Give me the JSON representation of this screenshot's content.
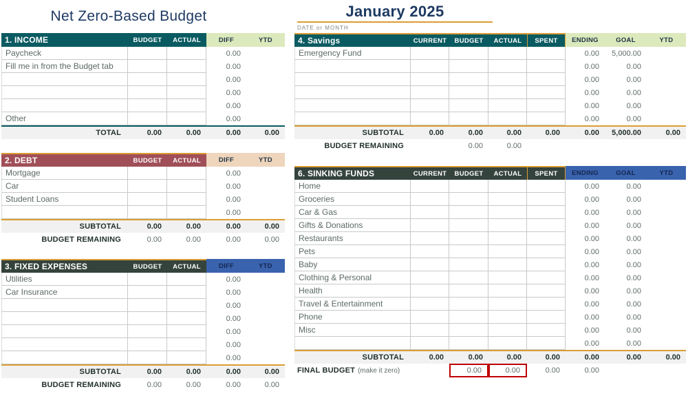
{
  "page": {
    "left_title": "Net Zero-Based Budget",
    "right_title": "January 2025",
    "date_label": "DATE or MONTH"
  },
  "colors": {
    "teal": "#0a5b61",
    "light_green": "#dbe9bc",
    "maroon": "#a04f58",
    "tan": "#eed5bc",
    "charcoal": "#35433d",
    "blue": "#3a63ae",
    "orange": "#dc9d33",
    "navy": "#1e3a63",
    "red": "#c00000",
    "subtotal_bg": "#f1f1f1"
  },
  "sections": {
    "income": {
      "title": "1. INCOME",
      "cols": [
        "BUDGET",
        "ACTUAL",
        "DIFF",
        "YTD"
      ],
      "rows": [
        {
          "label": "Paycheck",
          "diff": "0.00"
        },
        {
          "label": "Fill me in from the Budget tab",
          "diff": "0.00"
        },
        {
          "label": "",
          "diff": "0.00"
        },
        {
          "label": "",
          "diff": "0.00"
        },
        {
          "label": "",
          "diff": "0.00"
        },
        {
          "label": "Other",
          "diff": "0.00"
        }
      ],
      "total_label": "TOTAL",
      "total_values": [
        "0.00",
        "0.00",
        "0.00",
        "0.00"
      ]
    },
    "debt": {
      "title": "2. DEBT",
      "cols": [
        "BUDGET",
        "ACTUAL",
        "DIFF",
        "YTD"
      ],
      "rows": [
        {
          "label": "Mortgage",
          "diff": "0.00"
        },
        {
          "label": "Car",
          "diff": "0.00"
        },
        {
          "label": "Student Loans",
          "diff": "0.00"
        },
        {
          "label": "",
          "diff": "0.00"
        }
      ],
      "subtotal_label": "SUBTOTAL",
      "subtotal_values": [
        "0.00",
        "0.00",
        "0.00",
        "0.00"
      ],
      "remaining_label": "BUDGET REMAINING",
      "remaining_values": [
        "0.00",
        "0.00",
        "0.00",
        "0.00"
      ]
    },
    "fixed": {
      "title": "3. FIXED EXPENSES",
      "cols": [
        "BUDGET",
        "ACTUAL",
        "DIFF",
        "YTD"
      ],
      "rows": [
        {
          "label": "Utilities",
          "diff": "0.00"
        },
        {
          "label": "Car Insurance",
          "diff": "0.00"
        },
        {
          "label": "",
          "diff": "0.00"
        },
        {
          "label": "",
          "diff": "0.00"
        },
        {
          "label": "",
          "diff": "0.00"
        },
        {
          "label": "",
          "diff": "0.00"
        },
        {
          "label": "",
          "diff": "0.00"
        }
      ],
      "subtotal_label": "SUBTOTAL",
      "subtotal_values": [
        "0.00",
        "0.00",
        "0.00",
        "0.00"
      ],
      "remaining_label": "BUDGET REMAINING",
      "remaining_values": [
        "0.00",
        "0.00",
        "0.00",
        "0.00"
      ]
    },
    "savings": {
      "title": "4. Savings",
      "cols": [
        "CURRENT",
        "BUDGET",
        "ACTUAL",
        "SPENT",
        "ENDING",
        "GOAL",
        "YTD"
      ],
      "rows": [
        {
          "label": "Emergency Fund",
          "ending": "0.00",
          "goal": "5,000.00"
        },
        {
          "label": "",
          "ending": "0.00",
          "goal": "0.00"
        },
        {
          "label": "",
          "ending": "0.00",
          "goal": "0.00"
        },
        {
          "label": "",
          "ending": "0.00",
          "goal": "0.00"
        },
        {
          "label": "",
          "ending": "0.00",
          "goal": "0.00"
        },
        {
          "label": "",
          "ending": "0.00",
          "goal": "0.00"
        }
      ],
      "subtotal_label": "SUBTOTAL",
      "subtotal_values": [
        "0.00",
        "0.00",
        "0.00",
        "0.00",
        "0.00",
        "5,000.00",
        "0.00"
      ],
      "remaining_label": "BUDGET REMAINING",
      "remaining_budget": "0.00",
      "remaining_actual": "0.00"
    },
    "sinking": {
      "title": "6. SINKING FUNDS",
      "cols": [
        "CURRENT",
        "BUDGET",
        "ACTUAL",
        "SPENT",
        "ENDING",
        "GOAL",
        "YTD"
      ],
      "rows": [
        {
          "label": "Home",
          "ending": "0.00",
          "goal": "0.00"
        },
        {
          "label": "Groceries",
          "ending": "0.00",
          "goal": "0.00"
        },
        {
          "label": "Car & Gas",
          "ending": "0.00",
          "goal": "0.00"
        },
        {
          "label": "Gifts & Donations",
          "ending": "0.00",
          "goal": "0.00"
        },
        {
          "label": "Restaurants",
          "ending": "0.00",
          "goal": "0.00"
        },
        {
          "label": "Pets",
          "ending": "0.00",
          "goal": "0.00"
        },
        {
          "label": "Baby",
          "ending": "0.00",
          "goal": "0.00"
        },
        {
          "label": "Clothing & Personal",
          "ending": "0.00",
          "goal": "0.00"
        },
        {
          "label": "Health",
          "ending": "0.00",
          "goal": "0.00"
        },
        {
          "label": "Travel & Entertainment",
          "ending": "0.00",
          "goal": "0.00"
        },
        {
          "label": "Phone",
          "ending": "0.00",
          "goal": "0.00"
        },
        {
          "label": "Misc",
          "ending": "0.00",
          "goal": "0.00"
        },
        {
          "label": "",
          "ending": "0.00",
          "goal": "0.00"
        }
      ],
      "subtotal_label": "SUBTOTAL",
      "subtotal_values": [
        "0.00",
        "0.00",
        "0.00",
        "0.00",
        "0.00",
        "0.00",
        "0.00"
      ],
      "final_label": "FINAL BUDGET",
      "final_note": "(make it zero)",
      "final_budget": "0.00",
      "final_actual": "0.00",
      "final_spent": "0.00",
      "final_ending": "0.00"
    }
  }
}
